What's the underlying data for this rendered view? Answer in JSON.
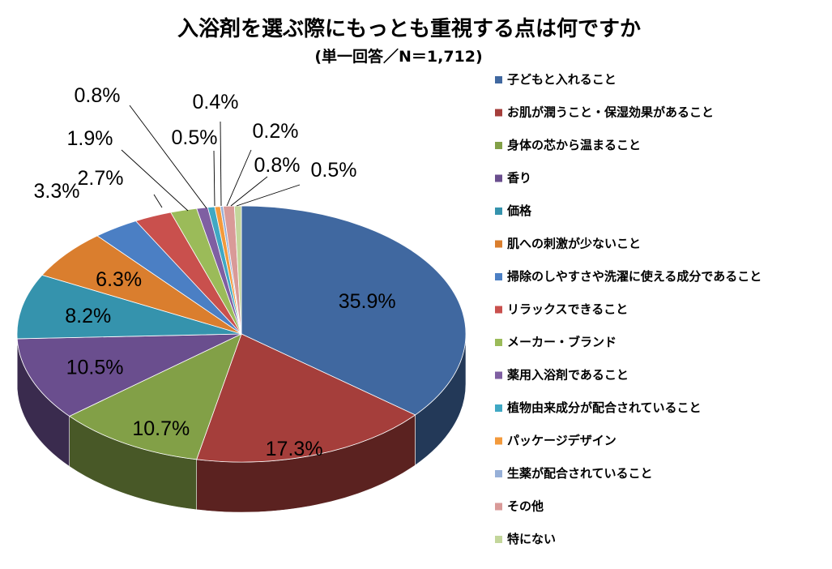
{
  "chart_data": {
    "type": "pie",
    "title": "入浴剤を選ぶ際にもっとも重視する点は何ですか",
    "subtitle": "(単一回答／N＝1,712)",
    "legend_position": "right",
    "slices": [
      {
        "label": "子どもと入れること",
        "value": 35.9,
        "display": "35.9%",
        "color": "#4068A0"
      },
      {
        "label": "お肌が潤うこと・保湿効果があること",
        "value": 17.3,
        "display": "17.3%",
        "color": "#A53E3B"
      },
      {
        "label": "身体の芯から温まること",
        "value": 10.7,
        "display": "10.7%",
        "color": "#82A047"
      },
      {
        "label": "香り",
        "value": 10.5,
        "display": "10.5%",
        "color": "#6A4E8E"
      },
      {
        "label": "価格",
        "value": 8.2,
        "display": "8.2%",
        "color": "#3593AD"
      },
      {
        "label": "肌への刺激が少ないこと",
        "value": 6.3,
        "display": "6.3%",
        "color": "#DA7E2E"
      },
      {
        "label": "掃除のしやすさや洗濯に使える成分であること",
        "value": 3.3,
        "display": "3.3%",
        "color": "#4B7FC4"
      },
      {
        "label": "リラックスできること",
        "value": 2.7,
        "display": "2.7%",
        "color": "#C9504D"
      },
      {
        "label": "メーカー・ブランド",
        "value": 1.9,
        "display": "1.9%",
        "color": "#9BBB59"
      },
      {
        "label": "薬用入浴剤であること",
        "value": 0.8,
        "display": "0.8%",
        "color": "#7F5FA2"
      },
      {
        "label": "植物由来成分が配合されていること",
        "value": 0.5,
        "display": "0.5%",
        "color": "#40A8C4"
      },
      {
        "label": "パッケージデザイン",
        "value": 0.4,
        "display": "0.4%",
        "color": "#F39A3C"
      },
      {
        "label": "生薬が配合されていること",
        "value": 0.2,
        "display": "0.2%",
        "color": "#97B0D8"
      },
      {
        "label": "その他",
        "value": 0.8,
        "display": "0.8%",
        "color": "#D99A98"
      },
      {
        "label": "特にない",
        "value": 0.5,
        "display": "0.5%",
        "color": "#C3D69B"
      }
    ]
  }
}
